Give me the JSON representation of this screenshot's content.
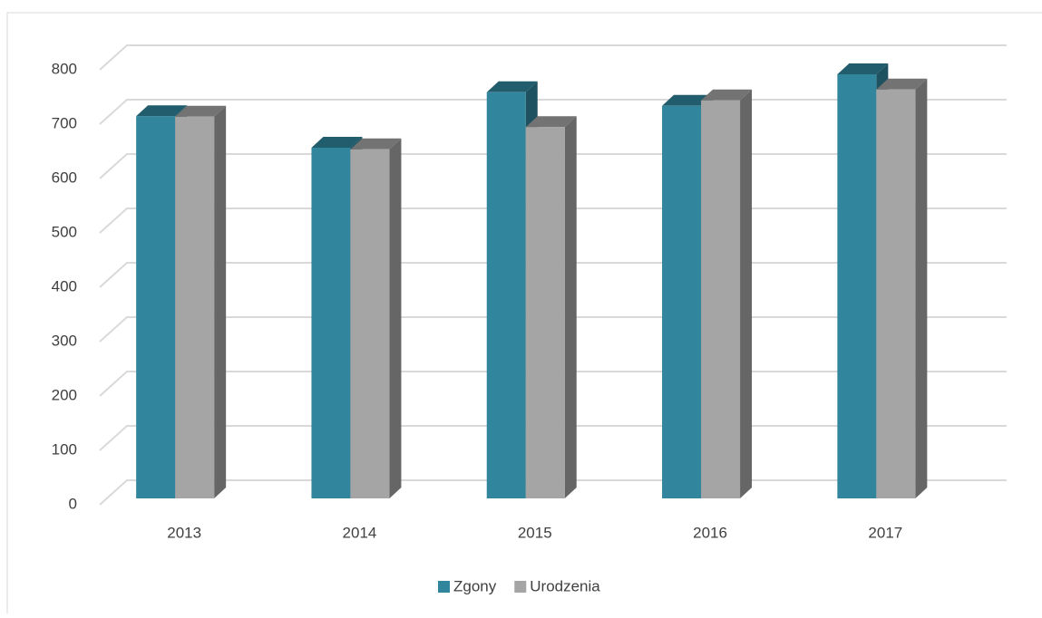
{
  "chart_data": {
    "type": "bar3d",
    "categories": [
      "2013",
      "2014",
      "2015",
      "2016",
      "2017"
    ],
    "series": [
      {
        "name": "Zgony",
        "color": "#31859c",
        "values": [
          703,
          645,
          747,
          722,
          780
        ]
      },
      {
        "name": "Urodzenia",
        "color": "#a5a5a5",
        "values": [
          702,
          642,
          683,
          732,
          752
        ]
      }
    ],
    "ylim": [
      0,
      800
    ],
    "yticks": [
      0,
      100,
      200,
      300,
      400,
      500,
      600,
      700,
      800
    ],
    "grid": true,
    "legend": "bottom"
  }
}
